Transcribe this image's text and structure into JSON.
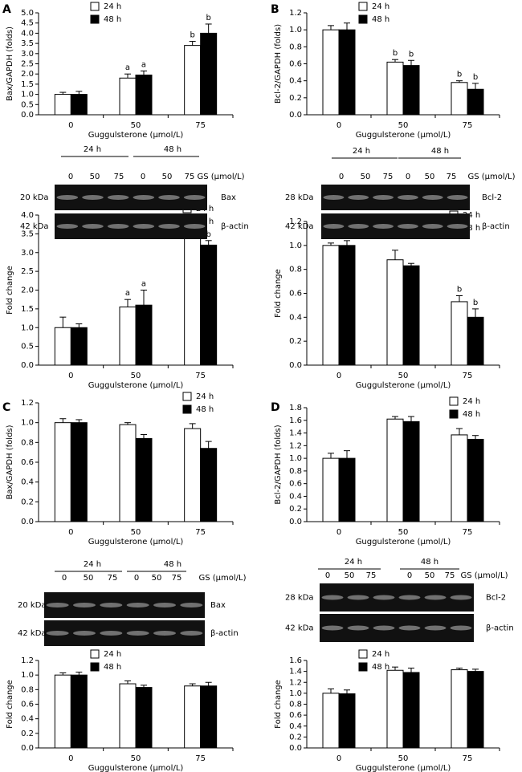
{
  "panels": [
    "A",
    "B",
    "C",
    "D"
  ],
  "blots": [
    {
      "group_labels": [
        "24 h",
        "48 h"
      ],
      "lanes": [
        "0",
        "50",
        "75",
        "0",
        "50",
        "75"
      ],
      "unit": "GS (μmol/L)",
      "rows": [
        {
          "kda": "20 kDa",
          "protein": "Bax"
        },
        {
          "kda": "42 kDa",
          "protein": "β-actin"
        }
      ]
    },
    {
      "group_labels": [
        "24 h",
        "48 h"
      ],
      "lanes": [
        "0",
        "50",
        "75",
        "0",
        "50",
        "75"
      ],
      "unit": "GS (μmol/L)",
      "rows": [
        {
          "kda": "28 kDa",
          "protein": "Bcl-2"
        },
        {
          "kda": "42 kDa",
          "protein": "β-actin"
        }
      ]
    },
    {
      "group_labels": [
        "24 h",
        "48 h"
      ],
      "lanes": [
        "0",
        "50",
        "75",
        "0",
        "50",
        "75"
      ],
      "unit": "GS (μmol/L)",
      "rows": [
        {
          "kda": "20 kDa",
          "protein": "Bax"
        },
        {
          "kda": "42 kDa",
          "protein": "β-actin"
        }
      ]
    },
    {
      "group_labels": [
        "24 h",
        "48 h"
      ],
      "lanes": [
        "0",
        "50",
        "75",
        "0",
        "50",
        "75"
      ],
      "unit": "GS (μmol/L)",
      "rows": [
        {
          "kda": "28 kDa",
          "protein": "Bcl-2"
        },
        {
          "kda": "42 kDa",
          "protein": "β-actin"
        }
      ]
    }
  ],
  "chart_data": [
    {
      "type": "bar",
      "ylabel": "Bax/GAPDH (folds)",
      "xlabel": "Guggulsterone (μmol/L)",
      "categories": [
        "0",
        "50",
        "75"
      ],
      "legend": "upper left",
      "ylim": [
        0,
        5
      ],
      "yticks": [
        {
          "value": 0,
          "label": "0.0"
        },
        0.5,
        {
          "value": 1,
          "label": "1.0"
        },
        1.5,
        {
          "value": 2,
          "label": "2.0"
        },
        2.5,
        {
          "value": 3,
          "label": "3.0"
        },
        3.5,
        {
          "value": 4,
          "label": "4.0"
        },
        4.5,
        {
          "value": 5,
          "label": "5.0"
        }
      ],
      "series": [
        {
          "name": "24 h",
          "color": "#ffffff",
          "values": [
            1.0,
            1.8,
            3.4
          ],
          "errors": [
            0.1,
            0.2,
            0.2
          ],
          "sig": [
            null,
            "a",
            "b"
          ]
        },
        {
          "name": "48 h",
          "color": "#000000",
          "values": [
            1.0,
            1.95,
            4.0
          ],
          "errors": [
            0.15,
            0.2,
            0.45
          ],
          "sig": [
            null,
            "a",
            "b"
          ]
        }
      ]
    },
    {
      "type": "bar",
      "ylabel": "Bcl-2/GAPDH (folds)",
      "xlabel": "Guggulsterone (μmol/L)",
      "categories": [
        "0",
        "50",
        "75"
      ],
      "legend": "upper left",
      "ylim": [
        0,
        1.2
      ],
      "yticks": [
        {
          "value": 0,
          "label": "0.0"
        },
        0.2,
        0.4,
        0.6,
        0.8,
        {
          "value": 1,
          "label": "1.0"
        },
        1.2
      ],
      "series": [
        {
          "name": "24 h",
          "color": "#ffffff",
          "values": [
            1.0,
            0.62,
            0.38
          ],
          "errors": [
            0.05,
            0.03,
            0.02
          ],
          "sig": [
            null,
            "b",
            "b"
          ]
        },
        {
          "name": "48 h",
          "color": "#000000",
          "values": [
            1.0,
            0.58,
            0.3
          ],
          "errors": [
            0.08,
            0.06,
            0.07
          ],
          "sig": [
            null,
            "b",
            "b"
          ]
        }
      ]
    },
    {
      "type": "bar",
      "ylabel": "Fold change",
      "xlabel": "Guggulsterone (μmol/L)",
      "categories": [
        "0",
        "50",
        "75"
      ],
      "legend": "upper right",
      "ylim": [
        0,
        4
      ],
      "yticks": [
        {
          "value": 0,
          "label": "0.0"
        },
        0.5,
        {
          "value": 1,
          "label": "1.0"
        },
        1.5,
        {
          "value": 2,
          "label": "2.0"
        },
        2.5,
        {
          "value": 3,
          "label": "3.0"
        },
        3.5,
        {
          "value": 4,
          "label": "4.0"
        }
      ],
      "series": [
        {
          "name": "24 h",
          "color": "#ffffff",
          "values": [
            1.0,
            1.55,
            3.5
          ],
          "errors": [
            0.28,
            0.2,
            0.25
          ],
          "sig": [
            null,
            "a",
            "b"
          ]
        },
        {
          "name": "48 h",
          "color": "#000000",
          "values": [
            1.0,
            1.6,
            3.2
          ],
          "errors": [
            0.1,
            0.4,
            0.12
          ],
          "sig": [
            null,
            "a",
            "b"
          ]
        }
      ]
    },
    {
      "type": "bar",
      "ylabel": "Fold change",
      "xlabel": "Guggulsterone (μmol/L)",
      "categories": [
        "0",
        "50",
        "75"
      ],
      "legend": "upper right",
      "ylim": [
        0,
        1.2
      ],
      "yticks": [
        {
          "value": 0,
          "label": "0.0"
        },
        0.2,
        0.4,
        0.6,
        0.8,
        {
          "value": 1,
          "label": "1.0"
        },
        1.2
      ],
      "series": [
        {
          "name": "24 h",
          "color": "#ffffff",
          "values": [
            1.0,
            0.88,
            0.53
          ],
          "errors": [
            0.02,
            0.08,
            0.05
          ],
          "sig": [
            null,
            null,
            "b"
          ]
        },
        {
          "name": "48 h",
          "color": "#000000",
          "values": [
            1.0,
            0.83,
            0.4
          ],
          "errors": [
            0.04,
            0.02,
            0.07
          ],
          "sig": [
            null,
            null,
            "b"
          ]
        }
      ]
    },
    {
      "type": "bar",
      "ylabel": "Bax/GAPDH (folds)",
      "xlabel": "Guggulsterone (μmol/L)",
      "categories": [
        "0",
        "50",
        "75"
      ],
      "legend": "upper right",
      "ylim": [
        0,
        1.2
      ],
      "yticks": [
        {
          "value": 0,
          "label": "0.0"
        },
        0.2,
        0.4,
        0.6,
        0.8,
        {
          "value": 1,
          "label": "1.0"
        },
        1.2
      ],
      "series": [
        {
          "name": "24 h",
          "color": "#ffffff",
          "values": [
            1.0,
            0.98,
            0.94
          ],
          "errors": [
            0.04,
            0.02,
            0.05
          ]
        },
        {
          "name": "48 h",
          "color": "#000000",
          "values": [
            1.0,
            0.84,
            0.74
          ],
          "errors": [
            0.03,
            0.04,
            0.07
          ]
        }
      ]
    },
    {
      "type": "bar",
      "ylabel": "Bcl-2/GAPDH (folds)",
      "xlabel": "Guggulsterone (μmol/L)",
      "categories": [
        "0",
        "50",
        "75"
      ],
      "legend": "upper right",
      "ylim": [
        0,
        1.8
      ],
      "yticks": [
        {
          "value": 0,
          "label": "0.0"
        },
        0.2,
        0.4,
        0.6,
        0.8,
        {
          "value": 1,
          "label": "1.0"
        },
        1.2,
        1.4,
        1.6,
        1.8
      ],
      "series": [
        {
          "name": "24 h",
          "color": "#ffffff",
          "values": [
            1.0,
            1.62,
            1.37
          ],
          "errors": [
            0.08,
            0.04,
            0.1
          ]
        },
        {
          "name": "48 h",
          "color": "#000000",
          "values": [
            1.0,
            1.58,
            1.3
          ],
          "errors": [
            0.12,
            0.08,
            0.06
          ]
        }
      ]
    },
    {
      "type": "bar",
      "ylabel": "Fold change",
      "xlabel": "Guggulsterone (μmol/L)",
      "categories": [
        "0",
        "50",
        "75"
      ],
      "legend": "upper left",
      "ylim": [
        0,
        1.2
      ],
      "yticks": [
        {
          "value": 0,
          "label": "0.0"
        },
        0.2,
        0.4,
        0.6,
        0.8,
        {
          "value": 1,
          "label": "1.0"
        },
        1.2
      ],
      "series": [
        {
          "name": "24 h",
          "color": "#ffffff",
          "values": [
            1.0,
            0.88,
            0.85
          ],
          "errors": [
            0.03,
            0.04,
            0.03
          ]
        },
        {
          "name": "48 h",
          "color": "#000000",
          "values": [
            1.0,
            0.83,
            0.85
          ],
          "errors": [
            0.04,
            0.03,
            0.05
          ]
        }
      ]
    },
    {
      "type": "bar",
      "ylabel": "Fold change",
      "xlabel": "Guggulsterone (μmol/L)",
      "categories": [
        "0",
        "50",
        "75"
      ],
      "legend": "upper left",
      "ylim": [
        0,
        1.6
      ],
      "yticks": [
        {
          "value": 0,
          "label": "0.0"
        },
        0.2,
        0.4,
        0.6,
        0.8,
        {
          "value": 1,
          "label": "1.0"
        },
        1.2,
        1.4,
        1.6
      ],
      "series": [
        {
          "name": "24 h",
          "color": "#ffffff",
          "values": [
            1.0,
            1.42,
            1.43
          ],
          "errors": [
            0.08,
            0.06,
            0.03
          ]
        },
        {
          "name": "48 h",
          "color": "#000000",
          "values": [
            0.99,
            1.38,
            1.4
          ],
          "errors": [
            0.07,
            0.08,
            0.04
          ]
        }
      ]
    }
  ]
}
